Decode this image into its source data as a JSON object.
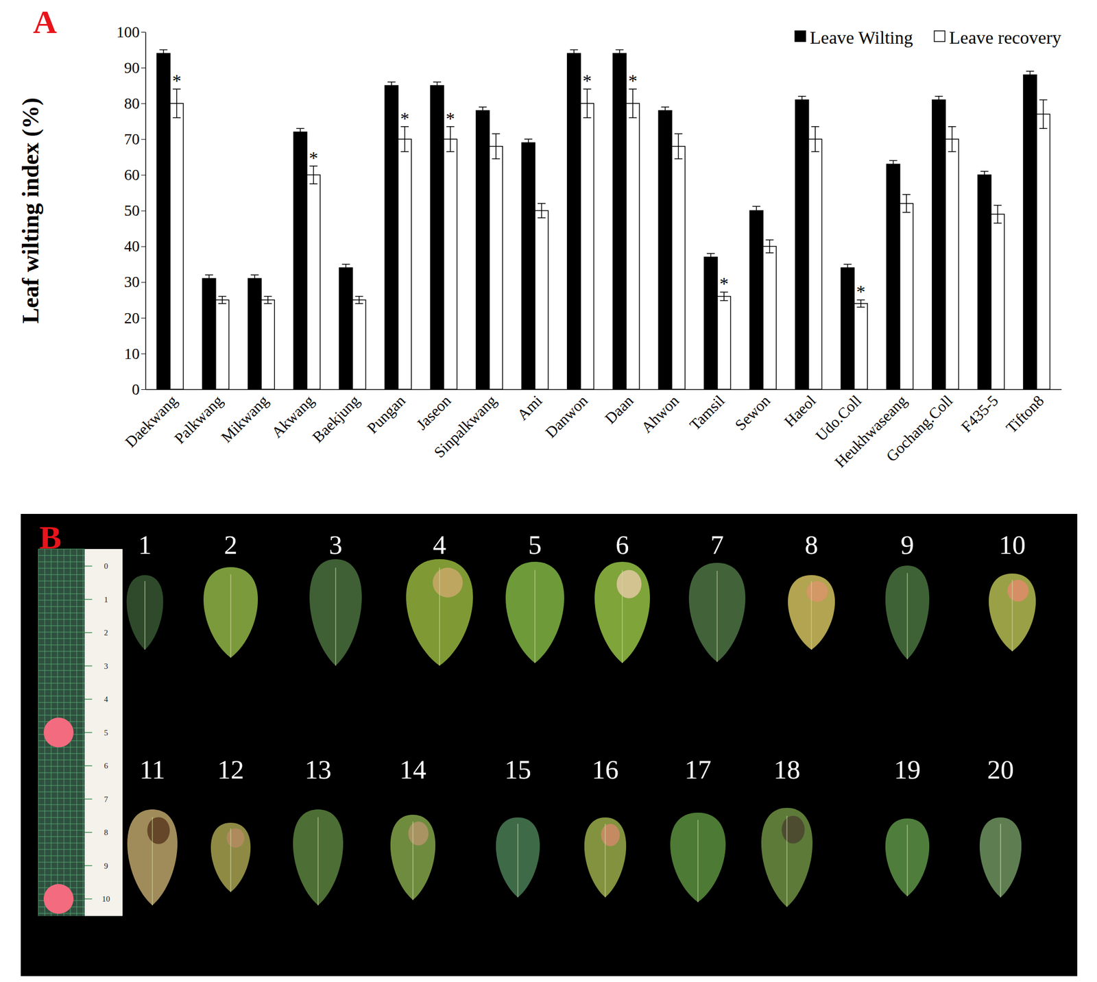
{
  "chart_data": {
    "type": "bar",
    "panel_label": "A",
    "y_label": "Leaf wilting index (%)",
    "categories": [
      "Daekwang",
      "Palkwang",
      "Mikwang",
      "Akwang",
      "Baekjung",
      "Pungan",
      "Jaseon",
      "Sinpalkwang",
      "Ami",
      "Danwon",
      "Daan",
      "Ahwon",
      "Tamsil",
      "Sewon",
      "Haeol",
      "Udo.Coll",
      "Heukhwaseang",
      "Gochang.Coll",
      "F435-5",
      "Tifton8"
    ],
    "series": [
      {
        "name": "Leave Wilting",
        "color": "#000000",
        "values": [
          94,
          31,
          31,
          72,
          34,
          85,
          85,
          78,
          69,
          94,
          94,
          78,
          37,
          50,
          81,
          34,
          63,
          81,
          60,
          88
        ],
        "errors": [
          1,
          1,
          1,
          1,
          1,
          1,
          1,
          1,
          1,
          1,
          1,
          1,
          1,
          1.2,
          1,
          1,
          1,
          1,
          1,
          1
        ]
      },
      {
        "name": "Leave recovery",
        "color": "#ffffff",
        "values": [
          80,
          25,
          25,
          60,
          25,
          70,
          70,
          68,
          50,
          80,
          80,
          68,
          26,
          40,
          70,
          24,
          52,
          70,
          49,
          77
        ],
        "errors": [
          4,
          1,
          1,
          2.5,
          1,
          3.5,
          3.5,
          3.5,
          2,
          4,
          4,
          3.5,
          1.2,
          1.8,
          3.5,
          1,
          2.5,
          3.5,
          2.5,
          4
        ],
        "significance": [
          "*",
          null,
          null,
          "*",
          null,
          "*",
          "*",
          null,
          null,
          "*",
          "*",
          null,
          "*",
          null,
          null,
          "*",
          null,
          null,
          null,
          null
        ]
      }
    ],
    "ylim": [
      0,
      100
    ],
    "yticks": [
      0,
      10,
      20,
      30,
      40,
      50,
      60,
      70,
      80,
      90,
      100
    ],
    "legend": "top-right",
    "grid": false
  },
  "photo_panel": {
    "panel_label": "B",
    "leaf_labels": [
      "1",
      "2",
      "3",
      "4",
      "5",
      "6",
      "7",
      "8",
      "9",
      "10",
      "11",
      "12",
      "13",
      "14",
      "15",
      "16",
      "17",
      "18",
      "19",
      "20"
    ],
    "ruler_labels": [
      "0",
      "1",
      "2",
      "3",
      "4",
      "5",
      "6",
      "7",
      "8",
      "9",
      "10"
    ]
  }
}
